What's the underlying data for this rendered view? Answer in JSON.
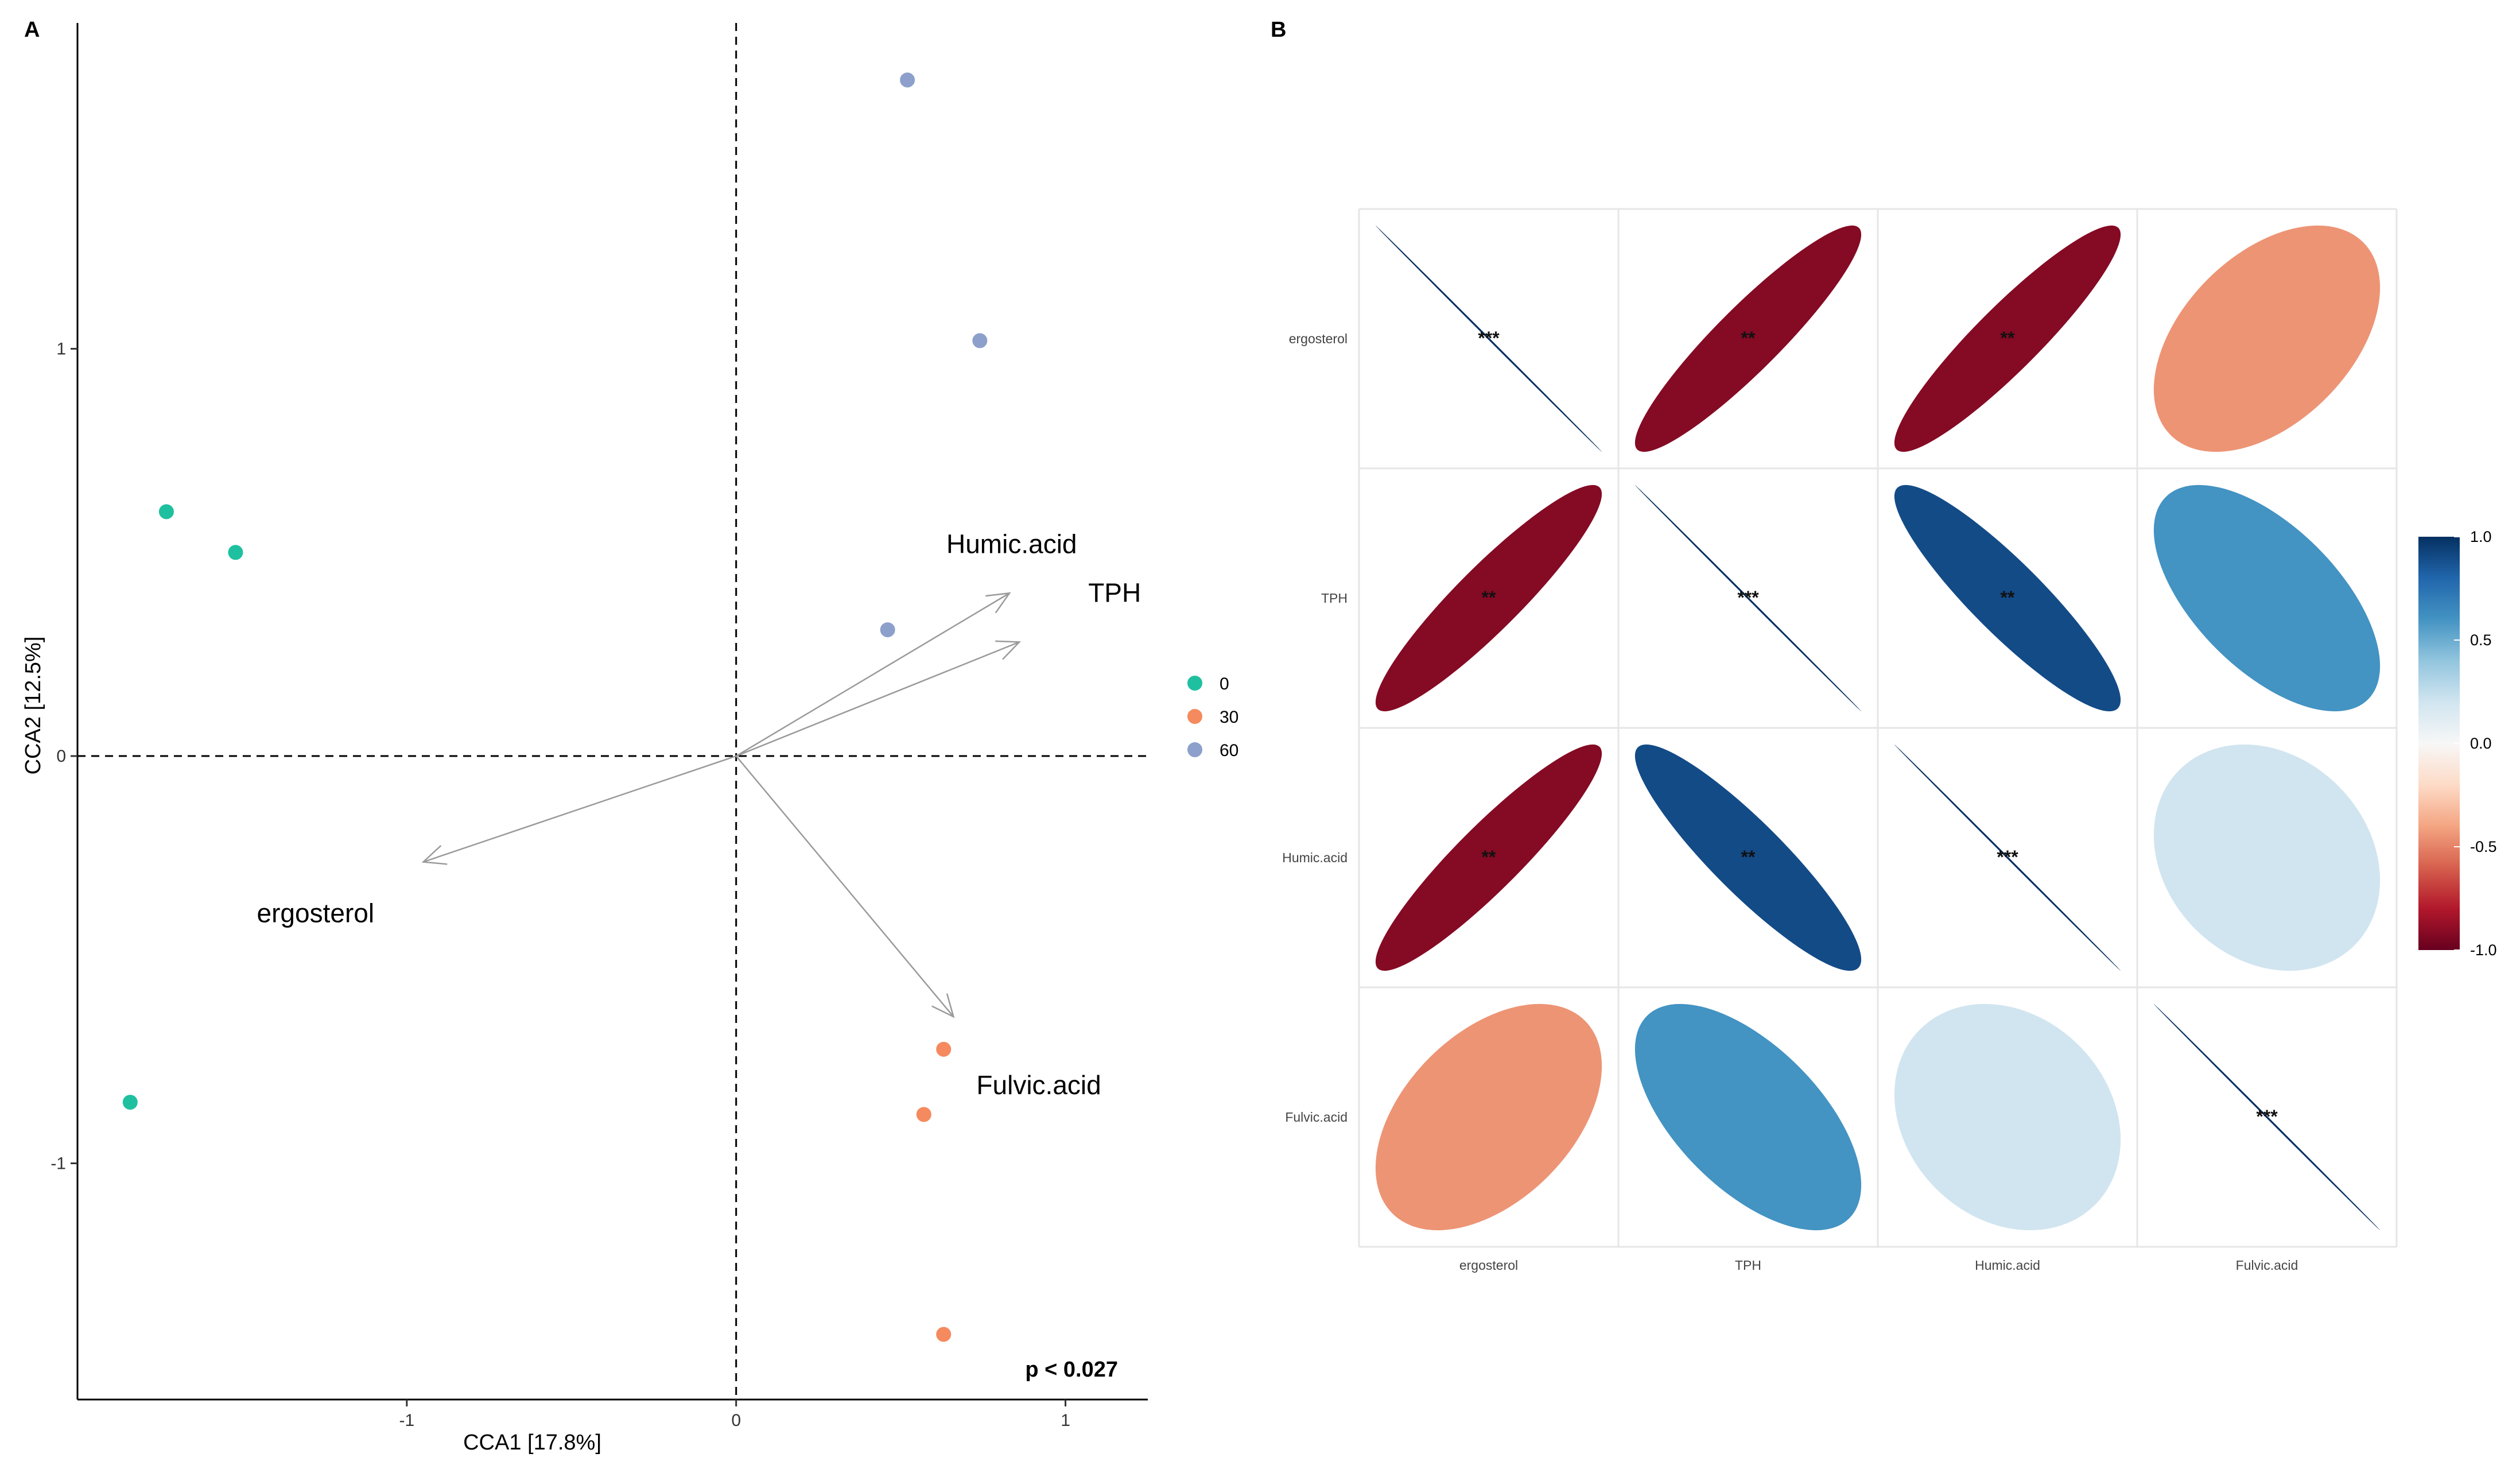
{
  "panels": {
    "a_label": "A",
    "b_label": "B"
  },
  "chart_data": [
    {
      "type": "scatter",
      "title": "",
      "xlabel": "CCA1   [17.8%]",
      "ylabel": "CCA2   [12.5%]",
      "xlim": [
        -2.0,
        1.25
      ],
      "ylim": [
        -1.58,
        1.8
      ],
      "x_ticks": [
        -1,
        0,
        1
      ],
      "x_tick_labels": [
        "-1",
        "0",
        "1"
      ],
      "y_ticks": [
        -1,
        0,
        1
      ],
      "y_tick_labels": [
        "-1",
        "0",
        "1"
      ],
      "reference_lines": {
        "x": 0,
        "y": 0,
        "style": "dashed"
      },
      "legend": {
        "position": "right",
        "entries": [
          {
            "name": "0",
            "color": "#1fc0a0"
          },
          {
            "name": "30",
            "color": "#f58a5e"
          },
          {
            "name": "60",
            "color": "#8da0cb"
          }
        ]
      },
      "series": [
        {
          "name": "0",
          "points": [
            [
              -1.73,
              0.6
            ],
            [
              -1.52,
              0.5
            ],
            [
              -1.84,
              -0.85
            ]
          ]
        },
        {
          "name": "30",
          "points": [
            [
              0.63,
              -0.72
            ],
            [
              0.57,
              -0.88
            ],
            [
              0.63,
              -1.42
            ]
          ]
        },
        {
          "name": "60",
          "points": [
            [
              0.52,
              1.66
            ],
            [
              0.74,
              1.02
            ],
            [
              0.46,
              0.31
            ]
          ]
        }
      ],
      "arrows": [
        {
          "label": "Humic.acid",
          "x": 0.83,
          "y": 0.4
        },
        {
          "label": "TPH",
          "x": 0.86,
          "y": 0.28
        },
        {
          "label": "ergosterol",
          "x": -0.95,
          "y": -0.26
        },
        {
          "label": "Fulvic.acid",
          "x": 0.66,
          "y": -0.64
        }
      ],
      "annotation": "p < 0.027"
    },
    {
      "type": "heatmap",
      "title": "",
      "variables": [
        "ergosterol",
        "TPH",
        "Humic.acid",
        "Fulvic.acid"
      ],
      "matrix": [
        [
          1.0,
          -0.92,
          -0.92,
          -0.45
        ],
        [
          -0.92,
          1.0,
          0.9,
          0.6
        ],
        [
          -0.92,
          0.9,
          1.0,
          0.2
        ],
        [
          -0.45,
          0.6,
          0.2,
          1.0
        ]
      ],
      "significance": [
        [
          "***",
          "**",
          "**",
          ""
        ],
        [
          "**",
          "***",
          "**",
          ""
        ],
        [
          "**",
          "**",
          "***",
          ""
        ],
        [
          "",
          "",
          "",
          "***"
        ]
      ],
      "colorbar": {
        "range": [
          -1.0,
          1.0
        ],
        "ticks": [
          "1.0",
          "0.5",
          "0.0",
          "-0.5",
          "-1.0"
        ],
        "colors": [
          "#67001f",
          "#b2182b",
          "#d6604d",
          "#f4a582",
          "#fddbc7",
          "#f7f7f7",
          "#d1e5f0",
          "#92c5de",
          "#4393c3",
          "#2166ac",
          "#053061"
        ]
      }
    }
  ]
}
